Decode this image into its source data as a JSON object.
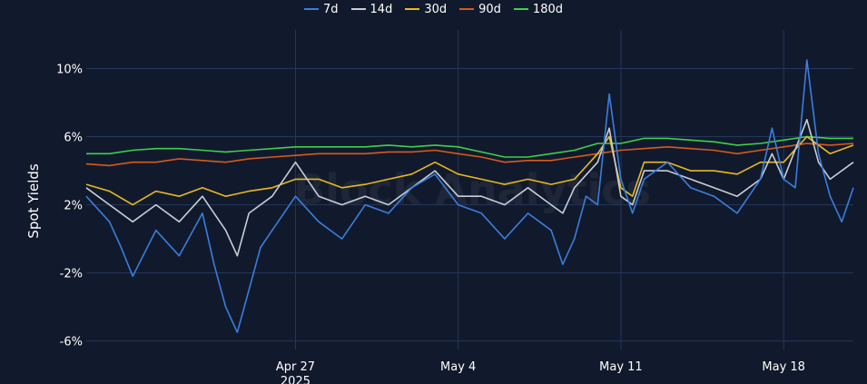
{
  "chart_data": {
    "type": "line",
    "title": "",
    "xlabel": "",
    "ylabel": "Spot Yields",
    "x_range": [
      "2025-04-18",
      "2025-05-21"
    ],
    "ylim": [
      -6.5,
      12
    ],
    "y_ticks": [
      {
        "value": -6,
        "label": "-6%"
      },
      {
        "value": -2,
        "label": "-2%"
      },
      {
        "value": 2,
        "label": "2%"
      },
      {
        "value": 6,
        "label": "6%"
      },
      {
        "value": 10,
        "label": "10%"
      }
    ],
    "x_ticks": [
      {
        "date": "2025-04-27",
        "label": "Apr 27",
        "sublabel": "2025"
      },
      {
        "date": "2025-05-04",
        "label": "May 4",
        "sublabel": ""
      },
      {
        "date": "2025-05-11",
        "label": "May 11",
        "sublabel": ""
      },
      {
        "date": "2025-05-18",
        "label": "May 18",
        "sublabel": ""
      }
    ],
    "grid": true,
    "legend_position": "top-center",
    "watermark": "Block Analytics",
    "series": [
      {
        "name": "7d",
        "color": "#3b7ddd",
        "points": [
          [
            "2025-04-18",
            2.5
          ],
          [
            "2025-04-19",
            1.0
          ],
          [
            "2025-04-19T12:00",
            -0.5
          ],
          [
            "2025-04-20",
            -2.2
          ],
          [
            "2025-04-21",
            0.5
          ],
          [
            "2025-04-22",
            -1.0
          ],
          [
            "2025-04-23",
            1.5
          ],
          [
            "2025-04-23T12:00",
            -1.5
          ],
          [
            "2025-04-24",
            -4.0
          ],
          [
            "2025-04-24T12:00",
            -5.5
          ],
          [
            "2025-04-25",
            -3.0
          ],
          [
            "2025-04-25T12:00",
            -0.5
          ],
          [
            "2025-04-26",
            0.5
          ],
          [
            "2025-04-27",
            2.5
          ],
          [
            "2025-04-28",
            1.0
          ],
          [
            "2025-04-29",
            0.0
          ],
          [
            "2025-04-30",
            2.0
          ],
          [
            "2025-05-01",
            1.5
          ],
          [
            "2025-05-02",
            3.0
          ],
          [
            "2025-05-03",
            3.8
          ],
          [
            "2025-05-04",
            2.0
          ],
          [
            "2025-05-05",
            1.5
          ],
          [
            "2025-05-06",
            0.0
          ],
          [
            "2025-05-07",
            1.5
          ],
          [
            "2025-05-08",
            0.5
          ],
          [
            "2025-05-08T12:00",
            -1.5
          ],
          [
            "2025-05-09",
            0.0
          ],
          [
            "2025-05-09T12:00",
            2.5
          ],
          [
            "2025-05-10",
            2.0
          ],
          [
            "2025-05-10T12:00",
            8.5
          ],
          [
            "2025-05-11",
            3.5
          ],
          [
            "2025-05-11T12:00",
            1.5
          ],
          [
            "2025-05-12",
            3.5
          ],
          [
            "2025-05-13",
            4.5
          ],
          [
            "2025-05-14",
            3.0
          ],
          [
            "2025-05-15",
            2.5
          ],
          [
            "2025-05-16",
            1.5
          ],
          [
            "2025-05-17",
            3.5
          ],
          [
            "2025-05-17T12:00",
            6.5
          ],
          [
            "2025-05-18",
            3.5
          ],
          [
            "2025-05-18T12:00",
            3.0
          ],
          [
            "2025-05-19",
            10.5
          ],
          [
            "2025-05-19T12:00",
            5.0
          ],
          [
            "2025-05-20",
            2.5
          ],
          [
            "2025-05-20T12:00",
            1.0
          ],
          [
            "2025-05-21",
            3.0
          ]
        ]
      },
      {
        "name": "14d",
        "color": "#c8cdd6",
        "points": [
          [
            "2025-04-18",
            3.0
          ],
          [
            "2025-04-19",
            2.0
          ],
          [
            "2025-04-20",
            1.0
          ],
          [
            "2025-04-21",
            2.0
          ],
          [
            "2025-04-22",
            1.0
          ],
          [
            "2025-04-23",
            2.5
          ],
          [
            "2025-04-24",
            0.5
          ],
          [
            "2025-04-24T12:00",
            -1.0
          ],
          [
            "2025-04-25",
            1.5
          ],
          [
            "2025-04-26",
            2.5
          ],
          [
            "2025-04-27",
            4.5
          ],
          [
            "2025-04-28",
            2.5
          ],
          [
            "2025-04-29",
            2.0
          ],
          [
            "2025-04-30",
            2.5
          ],
          [
            "2025-05-01",
            2.0
          ],
          [
            "2025-05-02",
            3.0
          ],
          [
            "2025-05-03",
            4.0
          ],
          [
            "2025-05-04",
            2.5
          ],
          [
            "2025-05-05",
            2.5
          ],
          [
            "2025-05-06",
            2.0
          ],
          [
            "2025-05-07",
            3.0
          ],
          [
            "2025-05-08",
            2.0
          ],
          [
            "2025-05-08T12:00",
            1.5
          ],
          [
            "2025-05-09",
            3.0
          ],
          [
            "2025-05-10",
            4.5
          ],
          [
            "2025-05-10T12:00",
            6.5
          ],
          [
            "2025-05-11",
            2.5
          ],
          [
            "2025-05-11T12:00",
            2.0
          ],
          [
            "2025-05-12",
            4.0
          ],
          [
            "2025-05-13",
            4.0
          ],
          [
            "2025-05-14",
            3.5
          ],
          [
            "2025-05-15",
            3.0
          ],
          [
            "2025-05-16",
            2.5
          ],
          [
            "2025-05-17",
            3.5
          ],
          [
            "2025-05-17T12:00",
            5.0
          ],
          [
            "2025-05-18",
            3.5
          ],
          [
            "2025-05-19",
            7.0
          ],
          [
            "2025-05-19T12:00",
            4.5
          ],
          [
            "2025-05-20",
            3.5
          ],
          [
            "2025-05-21",
            4.5
          ]
        ]
      },
      {
        "name": "30d",
        "color": "#e8b923",
        "points": [
          [
            "2025-04-18",
            3.2
          ],
          [
            "2025-04-19",
            2.8
          ],
          [
            "2025-04-20",
            2.0
          ],
          [
            "2025-04-21",
            2.8
          ],
          [
            "2025-04-22",
            2.5
          ],
          [
            "2025-04-23",
            3.0
          ],
          [
            "2025-04-24",
            2.5
          ],
          [
            "2025-04-25",
            2.8
          ],
          [
            "2025-04-26",
            3.0
          ],
          [
            "2025-04-27",
            3.5
          ],
          [
            "2025-04-28",
            3.5
          ],
          [
            "2025-04-29",
            3.0
          ],
          [
            "2025-04-30",
            3.2
          ],
          [
            "2025-05-01",
            3.5
          ],
          [
            "2025-05-02",
            3.8
          ],
          [
            "2025-05-03",
            4.5
          ],
          [
            "2025-05-04",
            3.8
          ],
          [
            "2025-05-05",
            3.5
          ],
          [
            "2025-05-06",
            3.2
          ],
          [
            "2025-05-07",
            3.5
          ],
          [
            "2025-05-08",
            3.2
          ],
          [
            "2025-05-09",
            3.5
          ],
          [
            "2025-05-10",
            5.0
          ],
          [
            "2025-05-10T12:00",
            6.0
          ],
          [
            "2025-05-11",
            3.0
          ],
          [
            "2025-05-11T12:00",
            2.5
          ],
          [
            "2025-05-12",
            4.5
          ],
          [
            "2025-05-13",
            4.5
          ],
          [
            "2025-05-14",
            4.0
          ],
          [
            "2025-05-15",
            4.0
          ],
          [
            "2025-05-16",
            3.8
          ],
          [
            "2025-05-17",
            4.5
          ],
          [
            "2025-05-18",
            4.5
          ],
          [
            "2025-05-19",
            6.0
          ],
          [
            "2025-05-20",
            5.0
          ],
          [
            "2025-05-21",
            5.5
          ]
        ]
      },
      {
        "name": "90d",
        "color": "#d55a1e",
        "points": [
          [
            "2025-04-18",
            4.4
          ],
          [
            "2025-04-19",
            4.3
          ],
          [
            "2025-04-20",
            4.5
          ],
          [
            "2025-04-21",
            4.5
          ],
          [
            "2025-04-22",
            4.7
          ],
          [
            "2025-04-23",
            4.6
          ],
          [
            "2025-04-24",
            4.5
          ],
          [
            "2025-04-25",
            4.7
          ],
          [
            "2025-04-26",
            4.8
          ],
          [
            "2025-04-27",
            4.9
          ],
          [
            "2025-04-28",
            5.0
          ],
          [
            "2025-04-29",
            5.0
          ],
          [
            "2025-04-30",
            5.0
          ],
          [
            "2025-05-01",
            5.1
          ],
          [
            "2025-05-02",
            5.1
          ],
          [
            "2025-05-03",
            5.2
          ],
          [
            "2025-05-04",
            5.0
          ],
          [
            "2025-05-05",
            4.8
          ],
          [
            "2025-05-06",
            4.5
          ],
          [
            "2025-05-07",
            4.6
          ],
          [
            "2025-05-08",
            4.6
          ],
          [
            "2025-05-09",
            4.8
          ],
          [
            "2025-05-10",
            5.0
          ],
          [
            "2025-05-11",
            5.2
          ],
          [
            "2025-05-12",
            5.3
          ],
          [
            "2025-05-13",
            5.4
          ],
          [
            "2025-05-14",
            5.3
          ],
          [
            "2025-05-15",
            5.2
          ],
          [
            "2025-05-16",
            5.0
          ],
          [
            "2025-05-17",
            5.2
          ],
          [
            "2025-05-18",
            5.4
          ],
          [
            "2025-05-19",
            5.6
          ],
          [
            "2025-05-20",
            5.5
          ],
          [
            "2025-05-21",
            5.6
          ]
        ]
      },
      {
        "name": "180d",
        "color": "#3ecf4f",
        "points": [
          [
            "2025-04-18",
            5.0
          ],
          [
            "2025-04-19",
            5.0
          ],
          [
            "2025-04-20",
            5.2
          ],
          [
            "2025-04-21",
            5.3
          ],
          [
            "2025-04-22",
            5.3
          ],
          [
            "2025-04-23",
            5.2
          ],
          [
            "2025-04-24",
            5.1
          ],
          [
            "2025-04-25",
            5.2
          ],
          [
            "2025-04-26",
            5.3
          ],
          [
            "2025-04-27",
            5.4
          ],
          [
            "2025-04-28",
            5.4
          ],
          [
            "2025-04-29",
            5.4
          ],
          [
            "2025-04-30",
            5.4
          ],
          [
            "2025-05-01",
            5.5
          ],
          [
            "2025-05-02",
            5.4
          ],
          [
            "2025-05-03",
            5.5
          ],
          [
            "2025-05-04",
            5.4
          ],
          [
            "2025-05-05",
            5.1
          ],
          [
            "2025-05-06",
            4.8
          ],
          [
            "2025-05-07",
            4.8
          ],
          [
            "2025-05-08",
            5.0
          ],
          [
            "2025-05-09",
            5.2
          ],
          [
            "2025-05-10",
            5.6
          ],
          [
            "2025-05-11",
            5.6
          ],
          [
            "2025-05-12",
            5.9
          ],
          [
            "2025-05-13",
            5.9
          ],
          [
            "2025-05-14",
            5.8
          ],
          [
            "2025-05-15",
            5.7
          ],
          [
            "2025-05-16",
            5.5
          ],
          [
            "2025-05-17",
            5.6
          ],
          [
            "2025-05-18",
            5.8
          ],
          [
            "2025-05-19",
            6.0
          ],
          [
            "2025-05-20",
            5.9
          ],
          [
            "2025-05-21",
            5.9
          ]
        ]
      }
    ]
  }
}
